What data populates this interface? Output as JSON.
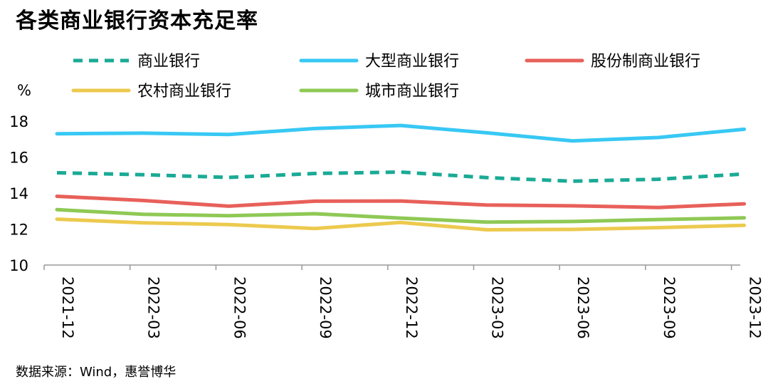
{
  "title": "各类商业银行资本充足率",
  "source": "数据来源：Wind，惠誉博华",
  "chart_data": {
    "type": "line",
    "ylabel": "%",
    "ylim": [
      10,
      18
    ],
    "yticks": [
      10,
      12,
      14,
      16,
      18
    ],
    "grid": false,
    "legend_position": "top",
    "x": [
      "2021-12",
      "2022-03",
      "2022-06",
      "2022-09",
      "2022-12",
      "2023-03",
      "2023-06",
      "2023-09",
      "2023-12"
    ],
    "series": [
      {
        "name": "商业银行",
        "color": "#1aaa95",
        "dash": true,
        "values": [
          15.13,
          15.02,
          14.87,
          15.09,
          15.17,
          14.86,
          14.66,
          14.77,
          15.06
        ]
      },
      {
        "name": "大型商业银行",
        "color": "#38c8f4",
        "dash": false,
        "values": [
          17.3,
          17.33,
          17.26,
          17.59,
          17.76,
          17.35,
          16.9,
          17.09,
          17.55
        ]
      },
      {
        "name": "股份制商业银行",
        "color": "#e8605a",
        "dash": false,
        "values": [
          13.82,
          13.59,
          13.27,
          13.55,
          13.56,
          13.34,
          13.29,
          13.2,
          13.4
        ]
      },
      {
        "name": "农村商业银行",
        "color": "#ecca4e",
        "dash": false,
        "values": [
          12.55,
          12.35,
          12.25,
          12.03,
          12.37,
          11.96,
          11.98,
          12.08,
          12.21
        ]
      },
      {
        "name": "城市商业银行",
        "color": "#8ec955",
        "dash": false,
        "values": [
          13.08,
          12.82,
          12.74,
          12.85,
          12.61,
          12.39,
          12.42,
          12.53,
          12.62
        ]
      }
    ]
  }
}
